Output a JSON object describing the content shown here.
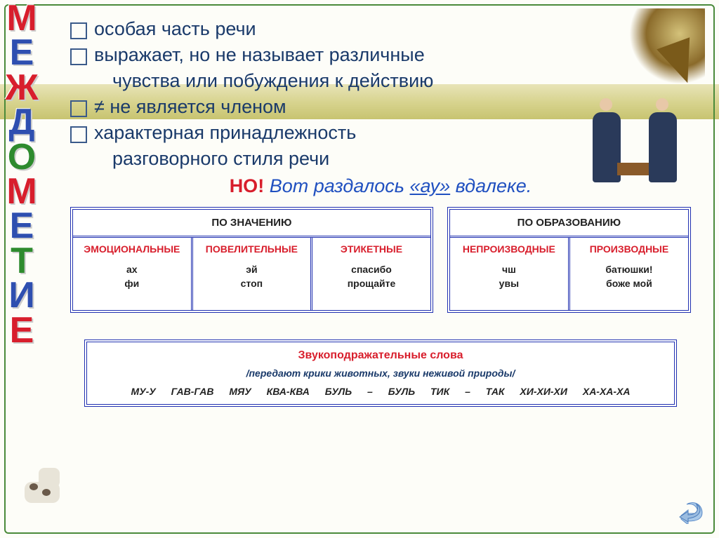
{
  "vert_title_letters": [
    "М",
    "Е",
    "Ж",
    "Д",
    "О",
    "М",
    "Е",
    "Т",
    "И",
    "Е"
  ],
  "vert_title_colors": [
    "vt-red",
    "vt-blue",
    "vt-red",
    "vt-blue",
    "vt-green",
    "vt-red",
    "vt-blue",
    "vt-green",
    "vt-blue",
    "vt-red"
  ],
  "bullets": {
    "b1": "особая часть речи",
    "b2": "выражает,  но не называет различные",
    "b2_cont": "чувства или побуждения к действию",
    "b3": "≠ не является членом",
    "b4": "характерная принадлежность",
    "b4_cont": "разговорного стиля речи"
  },
  "no_line": {
    "red": "НО!",
    "blue_pre": " Вот раздалось  ",
    "au": "«ау»",
    "blue_post": " вдалеке."
  },
  "table1": {
    "header": "ПО ЗНАЧЕНИЮ",
    "cols": [
      {
        "title": "ЭМОЦИОНАЛЬНЫЕ",
        "ex": "ах\nфи"
      },
      {
        "title": "ПОВЕЛИТЕЛЬНЫЕ",
        "ex": "эй\nстоп"
      },
      {
        "title": "ЭТИКЕТНЫЕ",
        "ex": "спасибо\nпрощайте"
      }
    ]
  },
  "table2": {
    "header": "ПО ОБРАЗОВАНИЮ",
    "cols": [
      {
        "title": "НЕПРОИЗВОДНЫЕ",
        "ex": "чш\nувы"
      },
      {
        "title": "ПРОИЗВОДНЫЕ",
        "ex": "батюшки!\nбоже мой"
      }
    ]
  },
  "onomatop": {
    "title": "Звукоподражательные слова",
    "sub": "/передают крики животных, звуки неживой природы/",
    "ex": "МУ-У   ГАВ-ГАВ   МЯУ   КВА-КВА   БУЛЬ – БУЛЬ   ТИК – ТАК   ХИ-ХИ-ХИ   ХА-ХА-ХА"
  },
  "colors": {
    "red": "#d81e2c",
    "blue_text": "#1a3a6a",
    "italic_blue": "#2050c0",
    "border_blue": "#2030b0",
    "frame_green": "#4a8a3a"
  }
}
